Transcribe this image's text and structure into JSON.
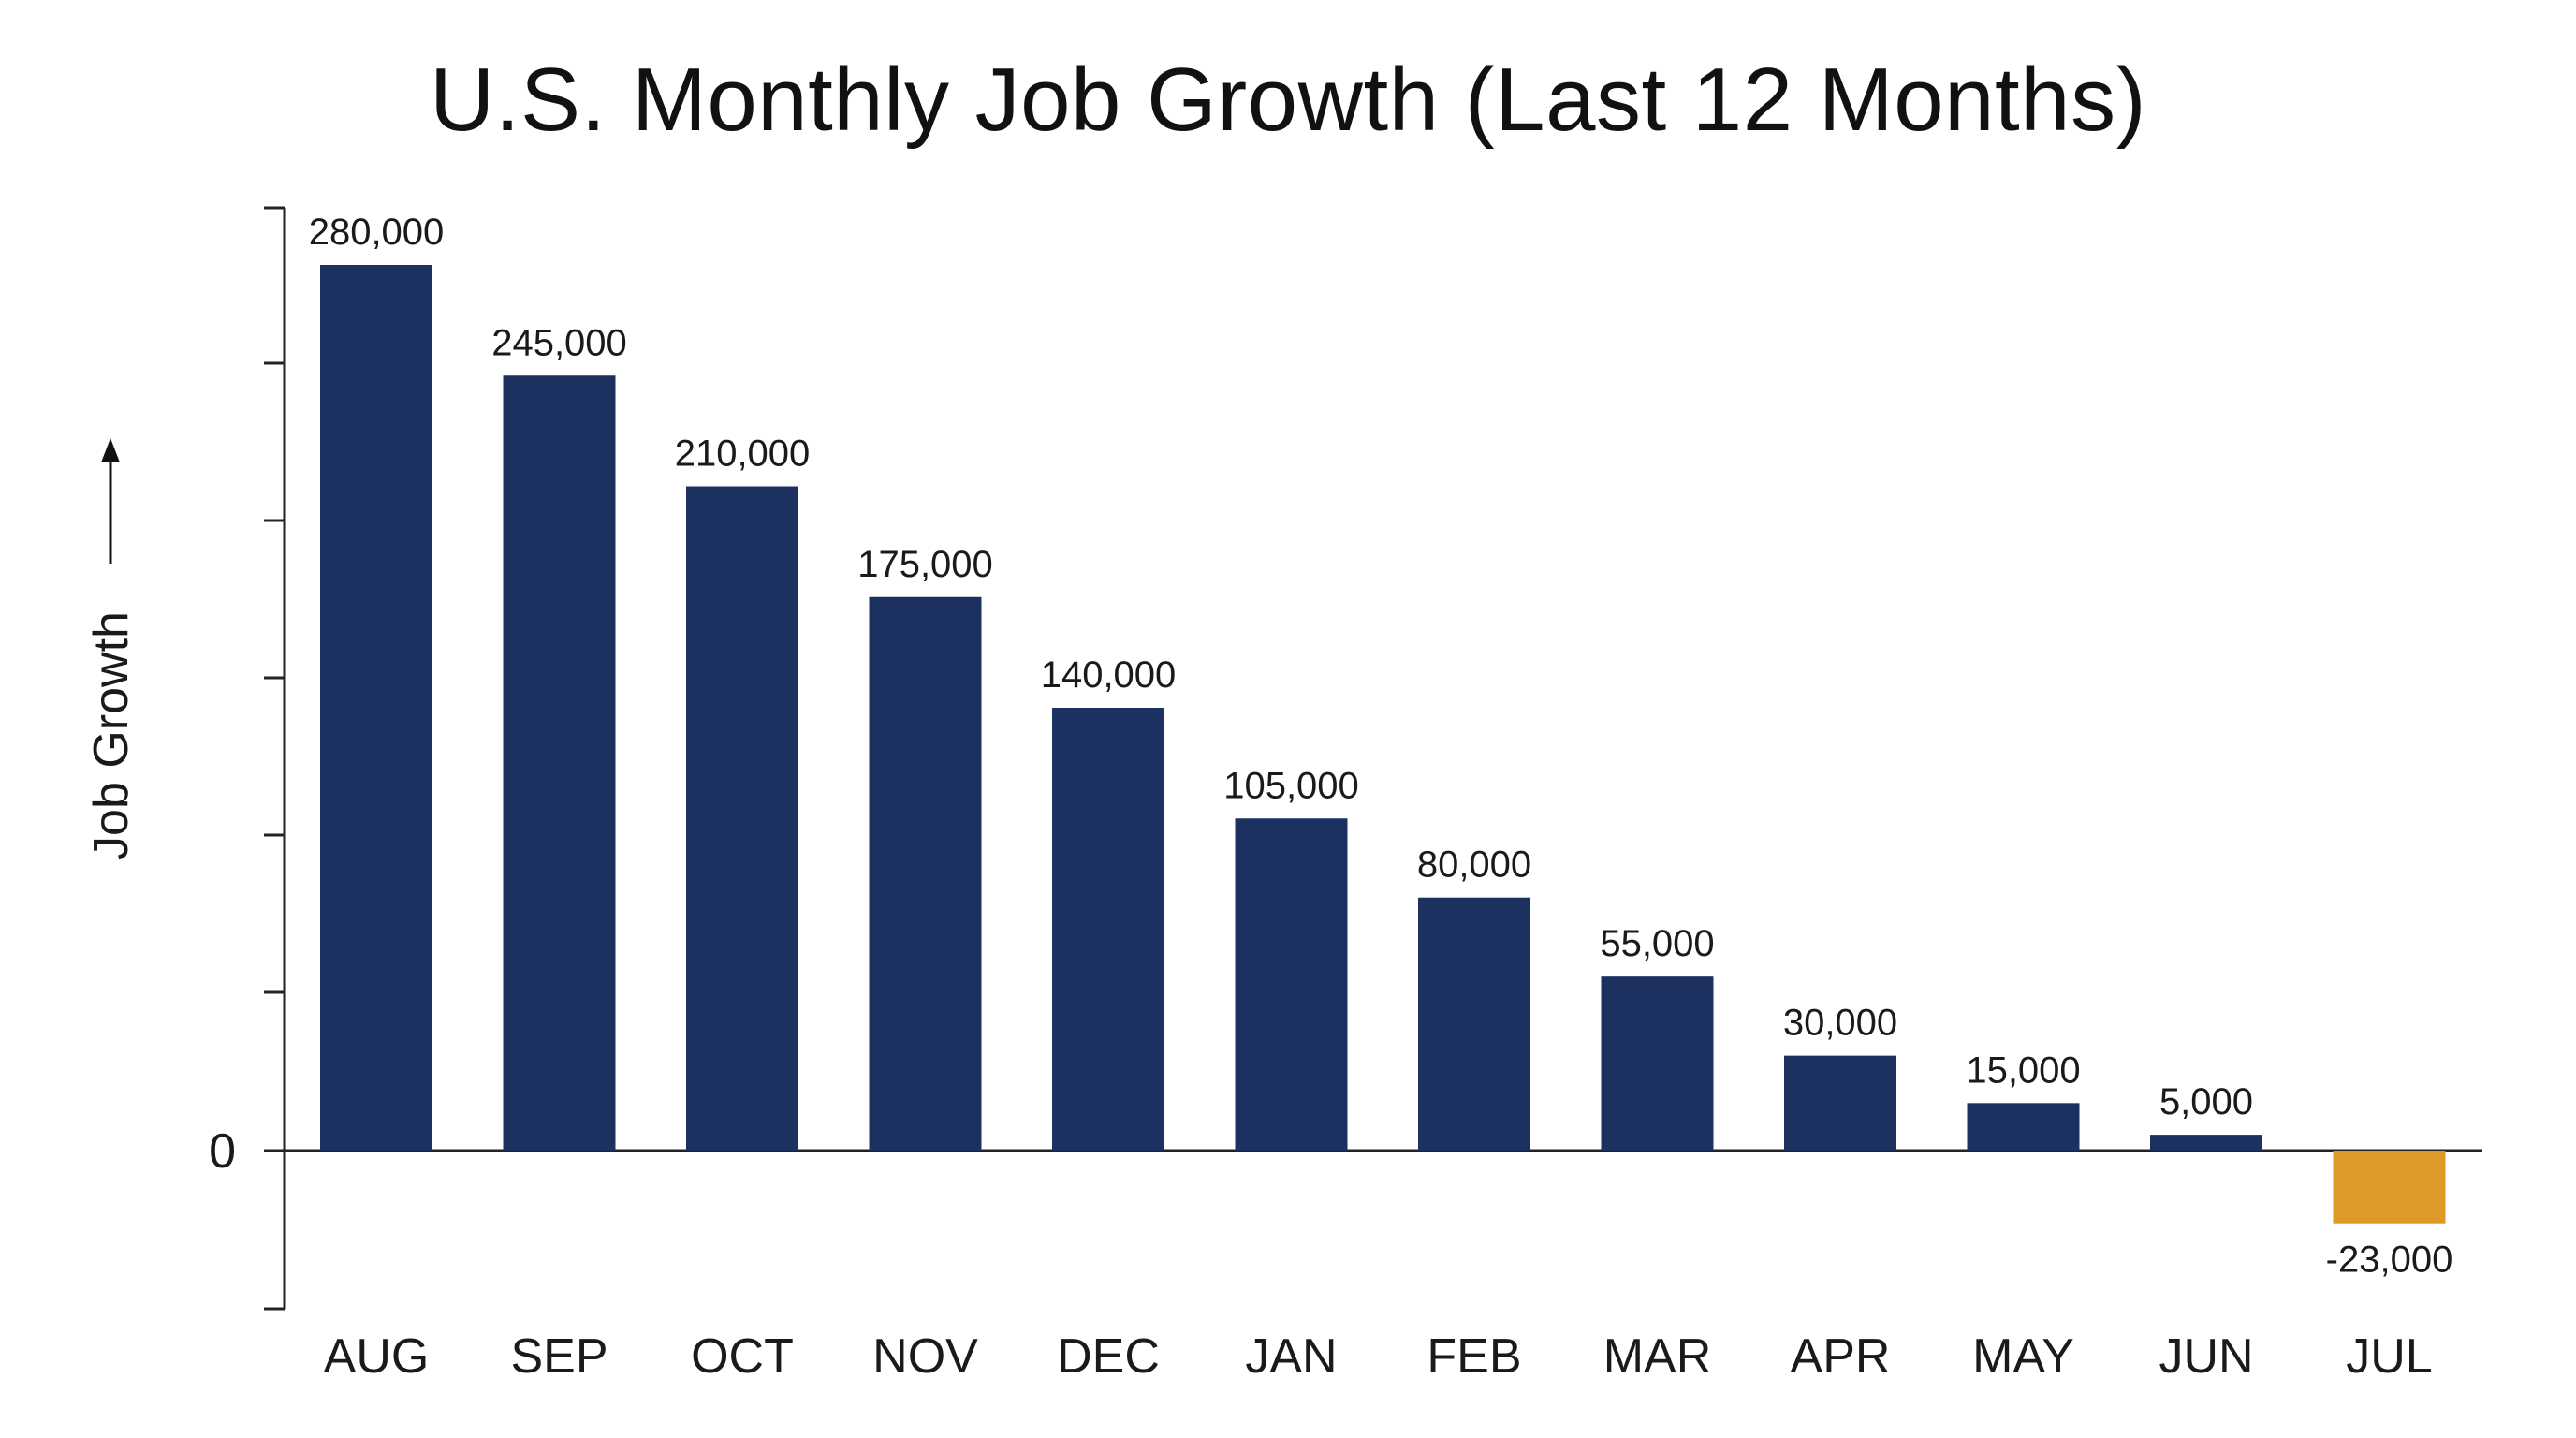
{
  "chart_data": {
    "type": "bar",
    "title": "U.S. Monthly Job Growth (Last 12 Months)",
    "ylabel": "Job Growth",
    "xlabel": "",
    "categories": [
      "AUG",
      "SEP",
      "OCT",
      "NOV",
      "DEC",
      "JAN",
      "FEB",
      "MAR",
      "APR",
      "MAY",
      "JUN",
      "JUL"
    ],
    "values": [
      280000,
      245000,
      210000,
      175000,
      140000,
      105000,
      80000,
      55000,
      30000,
      15000,
      5000,
      -23000
    ],
    "value_labels": [
      "280,000",
      "245,000",
      "210,000",
      "175,000",
      "140,000",
      "105,000",
      "80,000",
      "55,000",
      "30,000",
      "15,000",
      "5,000",
      "-23,000"
    ],
    "y_tick_labels": [
      "0"
    ],
    "ylim": [
      -50000,
      300000
    ],
    "grid": false,
    "legend": "none",
    "colors": {
      "positive": "#1c3160",
      "negative": "#dd9a26",
      "axis": "#222222"
    }
  }
}
